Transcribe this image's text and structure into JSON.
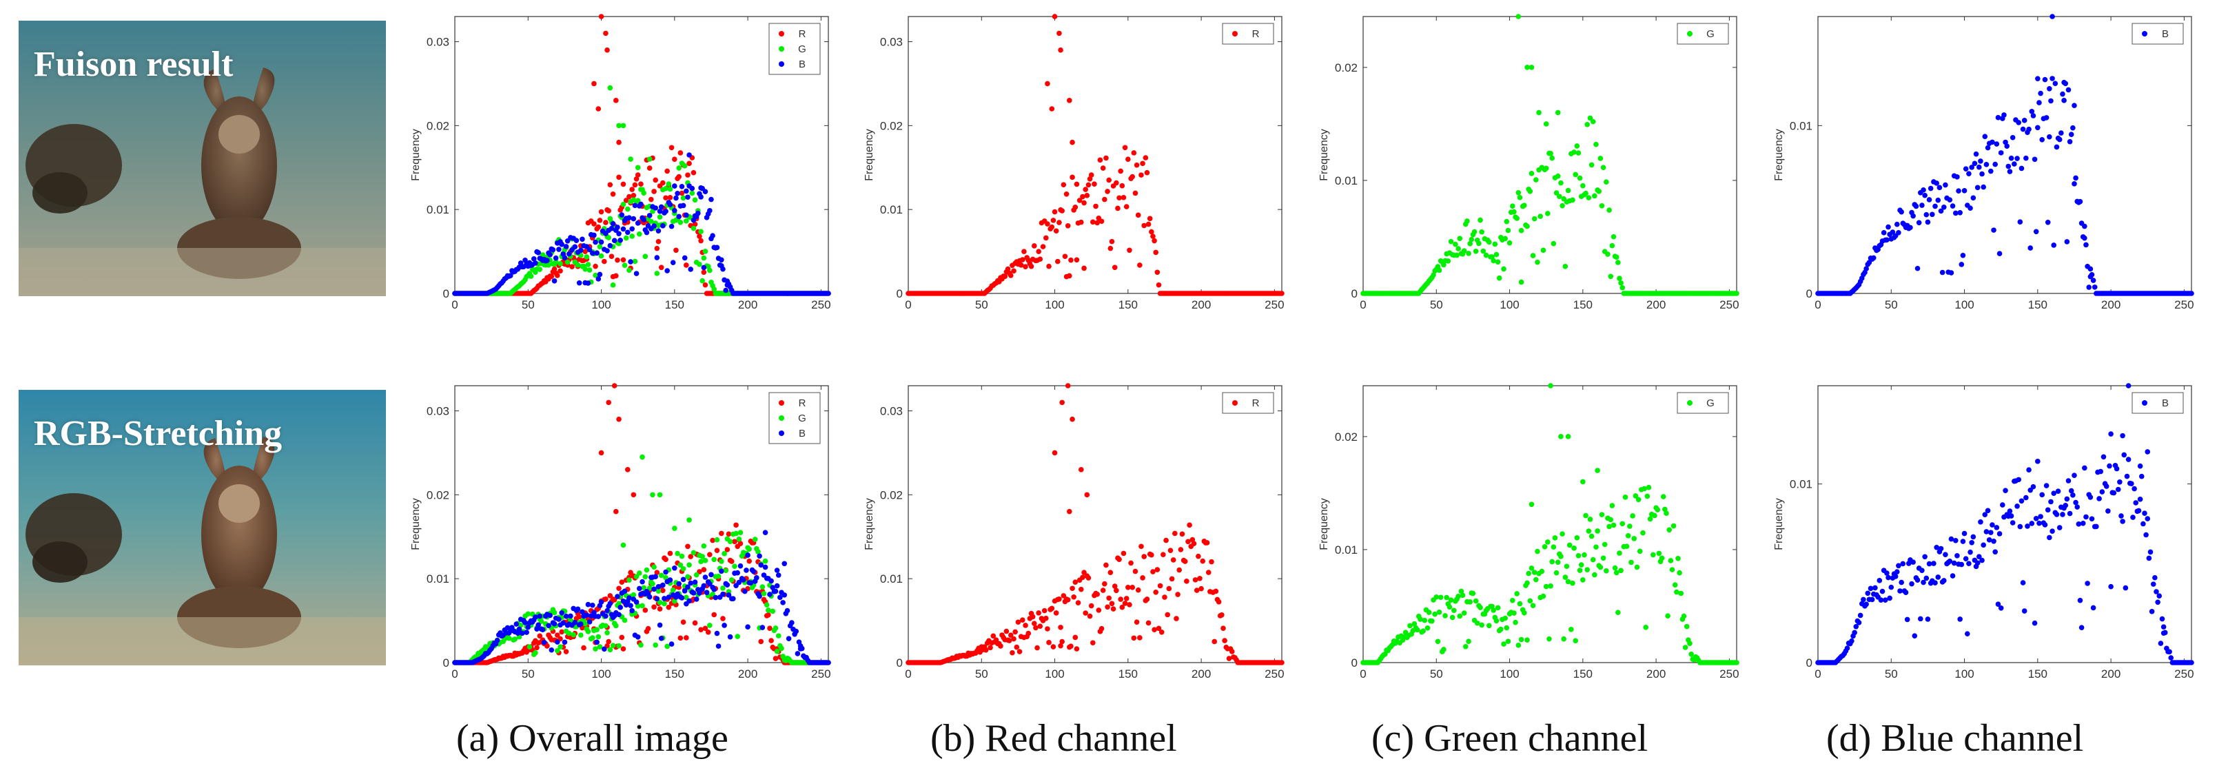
{
  "rows": [
    {
      "label": "Fuison result"
    },
    {
      "label": "RGB-Stretching"
    }
  ],
  "captions": [
    "(a) Overall image",
    "(b) Red channel",
    "(c) Green channel",
    "(d) Blue channel"
  ],
  "colors": {
    "R": "#ff0000",
    "G": "#00ee00",
    "B": "#0000ff"
  },
  "series_names": {
    "R": "R",
    "G": "G",
    "B": "B"
  },
  "icons": [
    "underwater-photo-icon"
  ],
  "chart_data": [
    {
      "id": "fusion-overall",
      "type": "scatter",
      "title": "",
      "xlabel": "",
      "ylabel": "Frequency",
      "xlim": [
        0,
        255
      ],
      "ylim": [
        0,
        0.033
      ],
      "xticks": [
        0,
        50,
        100,
        150,
        200,
        250
      ],
      "yticks": [
        0,
        0.01,
        0.02,
        0.03
      ],
      "ytick_labels": [
        "0",
        "0.01",
        "0.02",
        "0.03"
      ],
      "legend": [
        "R",
        "G",
        "B"
      ],
      "legend_position": "top-right",
      "series": [
        {
          "name": "R",
          "profile": "fusion_r"
        },
        {
          "name": "G",
          "profile": "fusion_g"
        },
        {
          "name": "B",
          "profile": "fusion_b"
        }
      ]
    },
    {
      "id": "fusion-red",
      "type": "scatter",
      "title": "",
      "xlabel": "",
      "ylabel": "Frequency",
      "xlim": [
        0,
        255
      ],
      "ylim": [
        0,
        0.033
      ],
      "xticks": [
        0,
        50,
        100,
        150,
        200,
        250
      ],
      "yticks": [
        0,
        0.01,
        0.02,
        0.03
      ],
      "ytick_labels": [
        "0",
        "0.01",
        "0.02",
        "0.03"
      ],
      "legend": [
        "R"
      ],
      "legend_position": "top-right",
      "series": [
        {
          "name": "R",
          "profile": "fusion_r"
        }
      ]
    },
    {
      "id": "fusion-green",
      "type": "scatter",
      "title": "",
      "xlabel": "",
      "ylabel": "Frequency",
      "xlim": [
        0,
        255
      ],
      "ylim": [
        0,
        0.0245
      ],
      "xticks": [
        0,
        50,
        100,
        150,
        200,
        250
      ],
      "yticks": [
        0,
        0.01,
        0.02
      ],
      "ytick_labels": [
        "0",
        "0.01",
        "0.02"
      ],
      "legend": [
        "G"
      ],
      "legend_position": "top-right",
      "series": [
        {
          "name": "G",
          "profile": "fusion_g"
        }
      ]
    },
    {
      "id": "fusion-blue",
      "type": "scatter",
      "title": "",
      "xlabel": "",
      "ylabel": "Frequency",
      "xlim": [
        0,
        255
      ],
      "ylim": [
        0,
        0.0165
      ],
      "xticks": [
        0,
        50,
        100,
        150,
        200,
        250
      ],
      "yticks": [
        0,
        0.01
      ],
      "ytick_labels": [
        "0",
        "0.01"
      ],
      "legend": [
        "B"
      ],
      "legend_position": "top-right",
      "series": [
        {
          "name": "B",
          "profile": "fusion_b"
        }
      ]
    },
    {
      "id": "stretch-overall",
      "type": "scatter",
      "title": "",
      "xlabel": "",
      "ylabel": "Frequency",
      "xlim": [
        0,
        255
      ],
      "ylim": [
        0,
        0.033
      ],
      "xticks": [
        0,
        50,
        100,
        150,
        200,
        250
      ],
      "yticks": [
        0,
        0.01,
        0.02,
        0.03
      ],
      "ytick_labels": [
        "0",
        "0.01",
        "0.02",
        "0.03"
      ],
      "legend": [
        "R",
        "G",
        "B"
      ],
      "legend_position": "top-right",
      "series": [
        {
          "name": "R",
          "profile": "stretch_r"
        },
        {
          "name": "G",
          "profile": "stretch_g"
        },
        {
          "name": "B",
          "profile": "stretch_b"
        }
      ]
    },
    {
      "id": "stretch-red",
      "type": "scatter",
      "title": "",
      "xlabel": "",
      "ylabel": "Frequency",
      "xlim": [
        0,
        255
      ],
      "ylim": [
        0,
        0.033
      ],
      "xticks": [
        0,
        50,
        100,
        150,
        200,
        250
      ],
      "yticks": [
        0,
        0.01,
        0.02,
        0.03
      ],
      "ytick_labels": [
        "0",
        "0.01",
        "0.02",
        "0.03"
      ],
      "legend": [
        "R"
      ],
      "legend_position": "top-right",
      "series": [
        {
          "name": "R",
          "profile": "stretch_r"
        }
      ]
    },
    {
      "id": "stretch-green",
      "type": "scatter",
      "title": "",
      "xlabel": "",
      "ylabel": "Frequency",
      "xlim": [
        0,
        255
      ],
      "ylim": [
        0,
        0.0245
      ],
      "xticks": [
        0,
        50,
        100,
        150,
        200,
        250
      ],
      "yticks": [
        0,
        0.01,
        0.02
      ],
      "ytick_labels": [
        "0",
        "0.01",
        "0.02"
      ],
      "legend": [
        "G"
      ],
      "legend_position": "top-right",
      "series": [
        {
          "name": "G",
          "profile": "stretch_g"
        }
      ]
    },
    {
      "id": "stretch-blue",
      "type": "scatter",
      "title": "",
      "xlabel": "",
      "ylabel": "Frequency",
      "xlim": [
        0,
        255
      ],
      "ylim": [
        0,
        0.0155
      ],
      "xticks": [
        0,
        50,
        100,
        150,
        200,
        250
      ],
      "yticks": [
        0,
        0.01
      ],
      "ytick_labels": [
        "0",
        "0.01"
      ],
      "legend": [
        "B"
      ],
      "legend_position": "top-right",
      "series": [
        {
          "name": "B",
          "profile": "stretch_b"
        }
      ]
    }
  ],
  "profiles": {
    "fusion_r": {
      "start": 52,
      "end": 172,
      "spread": 0.35,
      "seed": 11,
      "curve": [
        [
          52,
          0
        ],
        [
          58,
          0.001
        ],
        [
          65,
          0.002
        ],
        [
          72,
          0.003
        ],
        [
          80,
          0.0045
        ],
        [
          88,
          0.005
        ],
        [
          95,
          0.008
        ],
        [
          105,
          0.01
        ],
        [
          115,
          0.011
        ],
        [
          125,
          0.012
        ],
        [
          135,
          0.012
        ],
        [
          145,
          0.013
        ],
        [
          155,
          0.013
        ],
        [
          162,
          0.012
        ],
        [
          168,
          0.006
        ],
        [
          172,
          0
        ]
      ],
      "outliers": [
        [
          95,
          0.025
        ],
        [
          100,
          0.033
        ],
        [
          103,
          0.031
        ],
        [
          98,
          0.022
        ],
        [
          104,
          0.029
        ],
        [
          110,
          0.023
        ],
        [
          112,
          0.018
        ],
        [
          108,
          0.002
        ],
        [
          115,
          0.004
        ],
        [
          120,
          0.003
        ]
      ]
    },
    "fusion_g": {
      "start": 38,
      "end": 178,
      "spread": 0.3,
      "seed": 23,
      "curve": [
        [
          38,
          0
        ],
        [
          44,
          0.001
        ],
        [
          50,
          0.002
        ],
        [
          58,
          0.0035
        ],
        [
          65,
          0.0045
        ],
        [
          72,
          0.005
        ],
        [
          80,
          0.005
        ],
        [
          86,
          0.0045
        ],
        [
          92,
          0.0035
        ],
        [
          100,
          0.006
        ],
        [
          110,
          0.008
        ],
        [
          120,
          0.009
        ],
        [
          130,
          0.01
        ],
        [
          140,
          0.011
        ],
        [
          150,
          0.012
        ],
        [
          158,
          0.012
        ],
        [
          163,
          0.011
        ],
        [
          170,
          0.005
        ],
        [
          178,
          0
        ]
      ],
      "outliers": [
        [
          106,
          0.0245
        ],
        [
          112,
          0.02
        ],
        [
          115,
          0.02
        ],
        [
          120,
          0.016
        ],
        [
          125,
          0.015
        ],
        [
          133,
          0.016
        ],
        [
          108,
          0.001
        ]
      ]
    },
    "fusion_b": {
      "start": 22,
      "end": 190,
      "spread": 0.22,
      "seed": 37,
      "curve": [
        [
          22,
          0
        ],
        [
          28,
          0.0005
        ],
        [
          35,
          0.002
        ],
        [
          42,
          0.003
        ],
        [
          52,
          0.004
        ],
        [
          65,
          0.005
        ],
        [
          80,
          0.0055
        ],
        [
          95,
          0.006
        ],
        [
          105,
          0.0065
        ],
        [
          115,
          0.008
        ],
        [
          125,
          0.0088
        ],
        [
          135,
          0.009
        ],
        [
          145,
          0.0095
        ],
        [
          155,
          0.0105
        ],
        [
          165,
          0.011
        ],
        [
          172,
          0.01
        ],
        [
          178,
          0.006
        ],
        [
          184,
          0.002
        ],
        [
          190,
          0
        ]
      ],
      "outliers": [
        [
          150,
          0.0128
        ],
        [
          160,
          0.0165
        ],
        [
          158,
          0.0122
        ],
        [
          175,
          0.0112
        ],
        [
          168,
          0.0115
        ],
        [
          182,
          0.004
        ],
        [
          186,
          0.001
        ]
      ]
    },
    "stretch_r": {
      "start": 22,
      "end": 225,
      "spread": 0.35,
      "seed": 53,
      "curve": [
        [
          22,
          0
        ],
        [
          30,
          0.0005
        ],
        [
          40,
          0.001
        ],
        [
          50,
          0.0018
        ],
        [
          60,
          0.0025
        ],
        [
          70,
          0.0035
        ],
        [
          80,
          0.0042
        ],
        [
          88,
          0.0048
        ],
        [
          95,
          0.005
        ],
        [
          105,
          0.006
        ],
        [
          115,
          0.0075
        ],
        [
          130,
          0.009
        ],
        [
          150,
          0.01
        ],
        [
          165,
          0.011
        ],
        [
          180,
          0.012
        ],
        [
          190,
          0.013
        ],
        [
          198,
          0.013
        ],
        [
          205,
          0.011
        ],
        [
          212,
          0.006
        ],
        [
          218,
          0.002
        ],
        [
          225,
          0
        ]
      ],
      "outliers": [
        [
          100,
          0.025
        ],
        [
          105,
          0.031
        ],
        [
          109,
          0.033
        ],
        [
          112,
          0.029
        ],
        [
          118,
          0.023
        ],
        [
          122,
          0.02
        ],
        [
          110,
          0.018
        ],
        [
          104,
          0.002
        ],
        [
          114,
          0.003
        ]
      ]
    },
    "stretch_g": {
      "start": 10,
      "end": 230,
      "spread": 0.3,
      "seed": 71,
      "curve": [
        [
          10,
          0
        ],
        [
          16,
          0.001
        ],
        [
          22,
          0.0018
        ],
        [
          30,
          0.0025
        ],
        [
          40,
          0.0035
        ],
        [
          50,
          0.0045
        ],
        [
          60,
          0.005
        ],
        [
          70,
          0.005
        ],
        [
          80,
          0.0045
        ],
        [
          90,
          0.0038
        ],
        [
          100,
          0.004
        ],
        [
          110,
          0.006
        ],
        [
          120,
          0.008
        ],
        [
          135,
          0.009
        ],
        [
          150,
          0.01
        ],
        [
          165,
          0.011
        ],
        [
          180,
          0.0115
        ],
        [
          195,
          0.012
        ],
        [
          205,
          0.012
        ],
        [
          212,
          0.01
        ],
        [
          218,
          0.005
        ],
        [
          224,
          0.001
        ],
        [
          230,
          0
        ]
      ],
      "outliers": [
        [
          128,
          0.0245
        ],
        [
          135,
          0.02
        ],
        [
          140,
          0.02
        ],
        [
          115,
          0.014
        ],
        [
          150,
          0.016
        ],
        [
          160,
          0.017
        ],
        [
          112,
          0.002
        ]
      ]
    },
    "stretch_b": {
      "start": 12,
      "end": 242,
      "spread": 0.22,
      "seed": 89,
      "curve": [
        [
          12,
          0
        ],
        [
          18,
          0.0005
        ],
        [
          24,
          0.0015
        ],
        [
          30,
          0.003
        ],
        [
          38,
          0.004
        ],
        [
          50,
          0.0045
        ],
        [
          65,
          0.005
        ],
        [
          80,
          0.0055
        ],
        [
          95,
          0.006
        ],
        [
          110,
          0.0068
        ],
        [
          125,
          0.0078
        ],
        [
          135,
          0.0088
        ],
        [
          145,
          0.0095
        ],
        [
          155,
          0.009
        ],
        [
          165,
          0.0088
        ],
        [
          180,
          0.009
        ],
        [
          195,
          0.0095
        ],
        [
          205,
          0.01
        ],
        [
          215,
          0.01
        ],
        [
          222,
          0.009
        ],
        [
          228,
          0.006
        ],
        [
          234,
          0.003
        ],
        [
          238,
          0.001
        ],
        [
          242,
          0
        ]
      ],
      "outliers": [
        [
          200,
          0.0128
        ],
        [
          212,
          0.0155
        ],
        [
          208,
          0.0127
        ],
        [
          220,
          0.011
        ],
        [
          225,
          0.0118
        ],
        [
          236,
          0.002
        ]
      ]
    }
  }
}
